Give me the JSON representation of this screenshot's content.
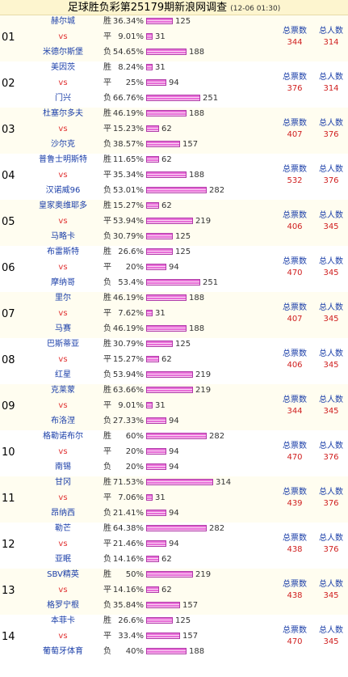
{
  "page": {
    "title": "足球胜负彩第25179期新浪网调查",
    "timestamp": "(12-06 01:30)"
  },
  "labels": {
    "vs": "vs",
    "win": "胜",
    "draw": "平",
    "loss": "负",
    "total_votes": "总票数",
    "total_people": "总人数"
  },
  "colors": {
    "bar": "#e86fd8",
    "team": "#1a3ea8",
    "vs": "#e03030",
    "stat_value": "#d02020"
  },
  "matches": [
    {
      "num": "01",
      "home": "赫尔城",
      "away": "米德尔斯堡",
      "win_pct": "36.34%",
      "draw_pct": "9.01%",
      "loss_pct": "54.65%",
      "win_count": "125",
      "draw_count": "31",
      "loss_count": "188",
      "total_votes": "344",
      "total_people": "314"
    },
    {
      "num": "02",
      "home": "美因茨",
      "away": "门兴",
      "win_pct": "8.24%",
      "draw_pct": "25%",
      "loss_pct": "66.76%",
      "win_count": "31",
      "draw_count": "94",
      "loss_count": "251",
      "total_votes": "376",
      "total_people": "314"
    },
    {
      "num": "03",
      "home": "杜塞尔多夫",
      "away": "沙尔克",
      "win_pct": "46.19%",
      "draw_pct": "15.23%",
      "loss_pct": "38.57%",
      "win_count": "188",
      "draw_count": "62",
      "loss_count": "157",
      "total_votes": "407",
      "total_people": "376"
    },
    {
      "num": "04",
      "home": "普鲁士明斯特",
      "away": "汉诺威96",
      "win_pct": "11.65%",
      "draw_pct": "35.34%",
      "loss_pct": "53.01%",
      "win_count": "62",
      "draw_count": "188",
      "loss_count": "282",
      "total_votes": "532",
      "total_people": "376"
    },
    {
      "num": "05",
      "home": "皇家奥维耶多",
      "away": "马略卡",
      "win_pct": "15.27%",
      "draw_pct": "53.94%",
      "loss_pct": "30.79%",
      "win_count": "62",
      "draw_count": "219",
      "loss_count": "125",
      "total_votes": "406",
      "total_people": "345"
    },
    {
      "num": "06",
      "home": "布雷斯特",
      "away": "摩纳哥",
      "win_pct": "26.6%",
      "draw_pct": "20%",
      "loss_pct": "53.4%",
      "win_count": "125",
      "draw_count": "94",
      "loss_count": "251",
      "total_votes": "470",
      "total_people": "345"
    },
    {
      "num": "07",
      "home": "里尔",
      "away": "马赛",
      "win_pct": "46.19%",
      "draw_pct": "7.62%",
      "loss_pct": "46.19%",
      "win_count": "188",
      "draw_count": "31",
      "loss_count": "188",
      "total_votes": "407",
      "total_people": "345"
    },
    {
      "num": "08",
      "home": "巴斯蒂亚",
      "away": "红星",
      "win_pct": "30.79%",
      "draw_pct": "15.27%",
      "loss_pct": "53.94%",
      "win_count": "125",
      "draw_count": "62",
      "loss_count": "219",
      "total_votes": "406",
      "total_people": "345"
    },
    {
      "num": "09",
      "home": "克莱蒙",
      "away": "布洛涅",
      "win_pct": "63.66%",
      "draw_pct": "9.01%",
      "loss_pct": "27.33%",
      "win_count": "219",
      "draw_count": "31",
      "loss_count": "94",
      "total_votes": "344",
      "total_people": "345"
    },
    {
      "num": "10",
      "home": "格勒诺布尔",
      "away": "南锡",
      "win_pct": "60%",
      "draw_pct": "20%",
      "loss_pct": "20%",
      "win_count": "282",
      "draw_count": "94",
      "loss_count": "94",
      "total_votes": "470",
      "total_people": "376"
    },
    {
      "num": "11",
      "home": "甘冈",
      "away": "昂纳西",
      "win_pct": "71.53%",
      "draw_pct": "7.06%",
      "loss_pct": "21.41%",
      "win_count": "314",
      "draw_count": "31",
      "loss_count": "94",
      "total_votes": "439",
      "total_people": "376"
    },
    {
      "num": "12",
      "home": "勒芒",
      "away": "亚眠",
      "win_pct": "64.38%",
      "draw_pct": "21.46%",
      "loss_pct": "14.16%",
      "win_count": "282",
      "draw_count": "94",
      "loss_count": "62",
      "total_votes": "438",
      "total_people": "376"
    },
    {
      "num": "13",
      "home": "SBV精英",
      "away": "格罗宁根",
      "win_pct": "50%",
      "draw_pct": "14.16%",
      "loss_pct": "35.84%",
      "win_count": "219",
      "draw_count": "62",
      "loss_count": "157",
      "total_votes": "438",
      "total_people": "345"
    },
    {
      "num": "14",
      "home": "本菲卡",
      "away": "葡萄牙体育",
      "win_pct": "26.6%",
      "draw_pct": "33.4%",
      "loss_pct": "40%",
      "win_count": "125",
      "draw_count": "157",
      "loss_count": "188",
      "total_votes": "470",
      "total_people": "345"
    }
  ]
}
